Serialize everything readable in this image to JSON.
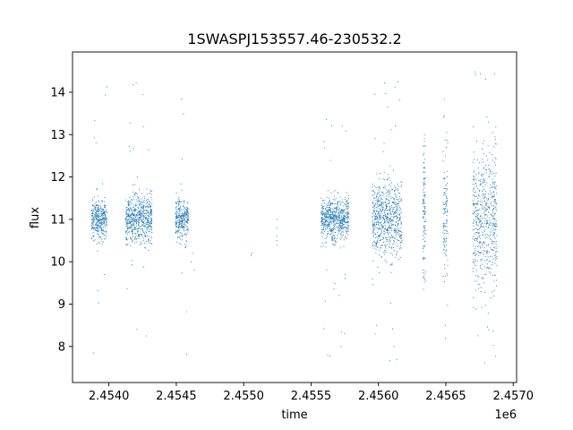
{
  "chart_data": {
    "type": "scatter",
    "title": "1SWASPJ153557.46-230532.2",
    "xlabel": "time",
    "ylabel": "flux",
    "x_offset_label": "1e6",
    "xlim": [
      2453730,
      2457025
    ],
    "ylim": [
      7.15,
      14.95
    ],
    "x_ticks": [
      2454000,
      2454500,
      2455000,
      2455500,
      2456000,
      2456500,
      2457000
    ],
    "x_tick_labels": [
      "2.4540",
      "2.4545",
      "2.4550",
      "2.4555",
      "2.4560",
      "2.4565",
      "2.4570"
    ],
    "y_ticks": [
      8,
      9,
      10,
      11,
      12,
      13,
      14
    ],
    "y_tick_labels": [
      "8",
      "9",
      "10",
      "11",
      "12",
      "13",
      "14"
    ],
    "grid": false,
    "marker_color": "#1f77b4",
    "clusters": [
      {
        "x_start": 2453870,
        "x_end": 2453985,
        "y_center": 11.0,
        "spread": 0.22,
        "y_min": 7.6,
        "y_max": 14.4
      },
      {
        "x_start": 2454125,
        "x_end": 2454320,
        "y_center": 11.0,
        "spread": 0.28,
        "y_min": 8.0,
        "y_max": 14.5
      },
      {
        "x_start": 2454495,
        "x_end": 2454590,
        "y_center": 11.0,
        "spread": 0.25,
        "y_min": 7.8,
        "y_max": 14.5
      },
      {
        "x_start": 2455575,
        "x_end": 2455780,
        "y_center": 11.0,
        "spread": 0.25,
        "y_min": 7.7,
        "y_max": 13.6
      },
      {
        "x_start": 2455955,
        "x_end": 2456175,
        "y_center": 11.0,
        "spread": 0.45,
        "y_min": 7.5,
        "y_max": 14.4
      },
      {
        "x_start": 2456330,
        "x_end": 2456350,
        "y_center": 11.0,
        "spread": 0.9,
        "y_min": 8.9,
        "y_max": 14.5
      },
      {
        "x_start": 2456480,
        "x_end": 2456515,
        "y_center": 11.0,
        "spread": 0.9,
        "y_min": 7.7,
        "y_max": 14.4
      },
      {
        "x_start": 2456700,
        "x_end": 2456880,
        "y_center": 11.0,
        "spread": 0.8,
        "y_min": 7.5,
        "y_max": 14.5
      }
    ],
    "isolated_points": [
      {
        "x": 2454620,
        "y": 10.2
      },
      {
        "x": 2454635,
        "y": 9.8
      },
      {
        "x": 2454610,
        "y": 10.0
      },
      {
        "x": 2455060,
        "y": 10.2
      },
      {
        "x": 2455055,
        "y": 10.15
      },
      {
        "x": 2455245,
        "y": 10.5
      },
      {
        "x": 2455250,
        "y": 10.4
      },
      {
        "x": 2455248,
        "y": 11.0
      },
      {
        "x": 2455247,
        "y": 10.8
      },
      {
        "x": 2455246,
        "y": 10.6
      }
    ]
  }
}
